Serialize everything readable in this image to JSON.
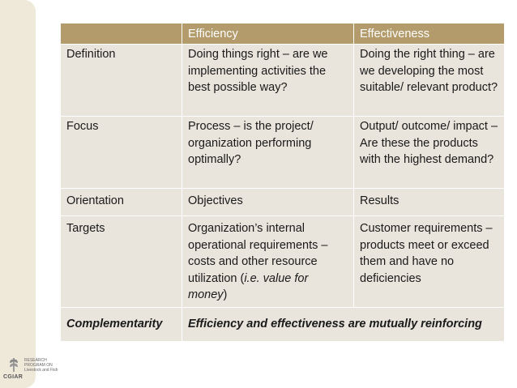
{
  "table": {
    "headers": [
      "",
      "Efficiency",
      "Effectiveness"
    ],
    "rows": [
      {
        "label": "Definition",
        "efficiency": "Doing things right – are we implementing activities the best possible way?",
        "effectiveness": "Doing the right thing – are we developing the most suitable/ relevant product?"
      },
      {
        "label": "Focus",
        "efficiency": "Process – is the project/ organization performing optimally?",
        "effectiveness": "Output/ outcome/ impact – Are these the products with the highest demand?"
      },
      {
        "label": "Orientation",
        "efficiency": "Objectives",
        "effectiveness": "Results"
      },
      {
        "label": "Targets",
        "efficiency_pre": "Organization’s internal operational requirements – costs and other resource utilization (",
        "efficiency_italic": "i.e. value for money",
        "efficiency_post": ")",
        "effectiveness": "Customer requirements – products meet or exceed them and have no deficiencies"
      }
    ],
    "footer": {
      "label": "Complementarity",
      "text": "Efficiency and effectiveness are mutually reinforcing"
    }
  },
  "logo": {
    "name": "CGIAR",
    "text_lines": [
      "RESEARCH",
      "PROGRAM ON",
      "Livestock and Fish"
    ]
  },
  "colors": {
    "header_bg": "#b39b6b",
    "cell_bg": "#e9e4dc",
    "side_band": "#efe9da"
  }
}
